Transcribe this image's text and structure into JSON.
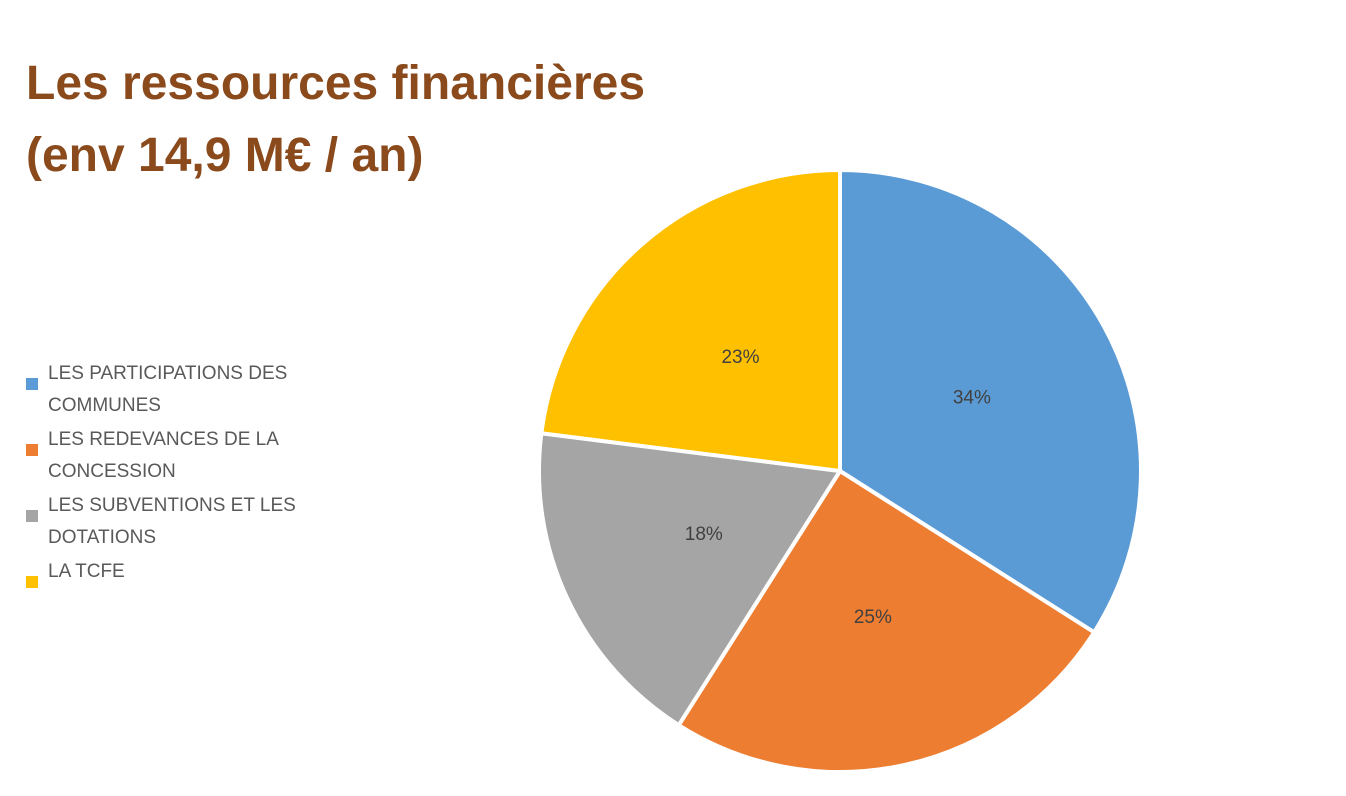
{
  "chart_data": {
    "type": "pie",
    "title": "Les ressources financières (env 14,9 M€ / an)",
    "title_lines": [
      "Les ressources financières",
      "(env 14,9 M€ / an)"
    ],
    "categories": [
      "LES PARTICIPATIONS DES COMMUNES",
      "LES REDEVANCES DE LA CONCESSION",
      "LES SUBVENTIONS ET LES DOTATIONS",
      "LA TCFE"
    ],
    "values": [
      34,
      25,
      18,
      23
    ],
    "value_labels": [
      "34%",
      "25%",
      "18%",
      "23%"
    ],
    "colors": [
      "#5b9bd5",
      "#ed7d31",
      "#a5a5a5",
      "#ffc000"
    ],
    "legend_position": "left",
    "start_angle": "12 o'clock",
    "direction": "clockwise"
  }
}
